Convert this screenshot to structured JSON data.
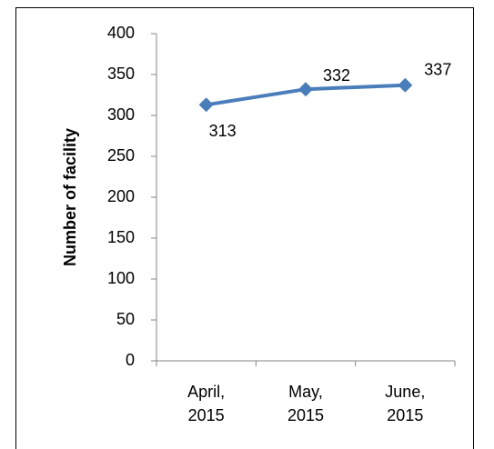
{
  "chart_data": {
    "type": "line",
    "y_label": "Number of facility",
    "categories": [
      "April, 2015",
      "May, 2015",
      "June, 2015"
    ],
    "series": [
      {
        "name": "Number of facility",
        "color": "#4a7ebb",
        "values": [
          313,
          332,
          337
        ]
      }
    ],
    "ylim": [
      0,
      400
    ],
    "yticks": [
      0,
      50,
      100,
      150,
      200,
      250,
      300,
      350,
      400
    ],
    "grid": false
  }
}
